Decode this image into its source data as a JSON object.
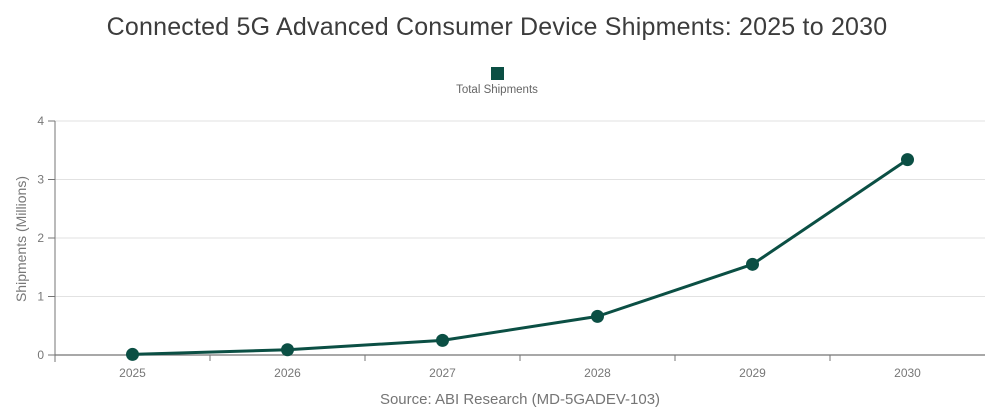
{
  "colors": {
    "series": "#0b4f44",
    "grid": "#e2e2e2",
    "axis": "#757575",
    "tick_text": "#777777",
    "title_text": "#3c3c3c",
    "legend_text": "#666666",
    "source_text": "#757575"
  },
  "chart_data": {
    "type": "line",
    "title": "Connected 5G Advanced Consumer Device Shipments: 2025 to 2030",
    "categories": [
      "2025",
      "2026",
      "2027",
      "2028",
      "2029",
      "2030"
    ],
    "series": [
      {
        "name": "Total Shipments",
        "values": [
          0.01,
          0.09,
          0.25,
          0.66,
          1.55,
          3.34
        ],
        "color": "#0b4f44"
      }
    ],
    "xlabel": "",
    "ylabel": "Shipments (Millions)",
    "ylim": [
      0,
      4
    ],
    "yticks": [
      0,
      1,
      2,
      3,
      4
    ],
    "grid": "horizontal",
    "legend_position": "top-center",
    "marker": "circle",
    "source": "Source: ABI Research (MD-5GADEV-103)"
  }
}
